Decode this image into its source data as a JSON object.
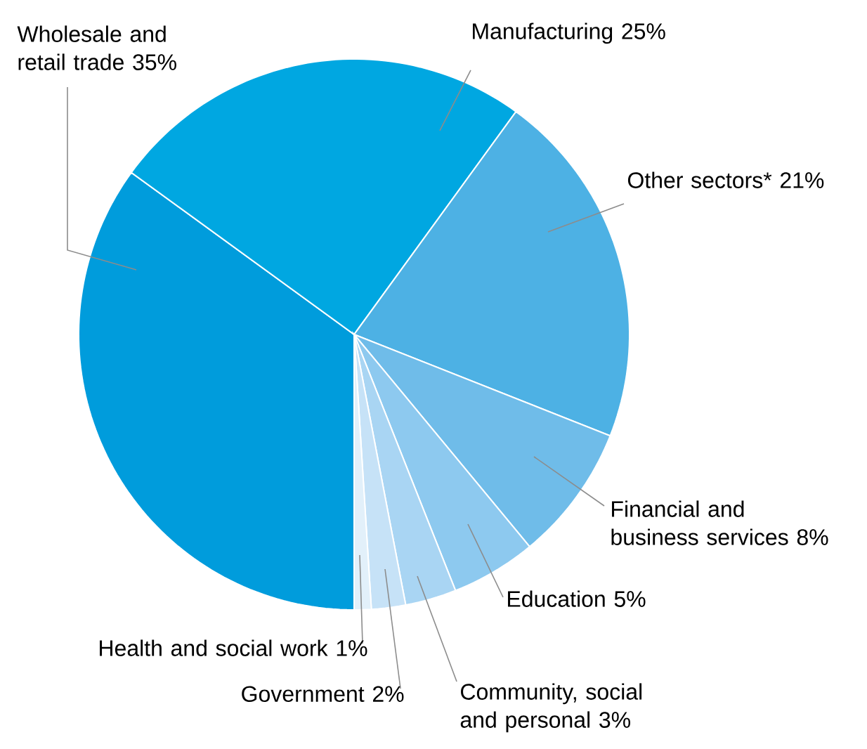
{
  "chart_data": {
    "type": "pie",
    "categories": [
      "Wholesale and retail trade",
      "Manufacturing",
      "Other sectors*",
      "Financial and business services",
      "Education",
      "Community, social and personal",
      "Government",
      "Health and social work"
    ],
    "values": [
      35,
      25,
      21,
      8,
      5,
      3,
      2,
      1
    ],
    "colors": [
      "#009cdc",
      "#00a7e1",
      "#4db1e4",
      "#6fbce9",
      "#8dc9ef",
      "#a9d5f3",
      "#c6e2f7",
      "#e2f0fa"
    ],
    "value_labels": [
      "35%",
      "25%",
      "21%",
      "8%",
      "5%",
      "3%",
      "2%",
      "1%"
    ],
    "legend": false
  }
}
